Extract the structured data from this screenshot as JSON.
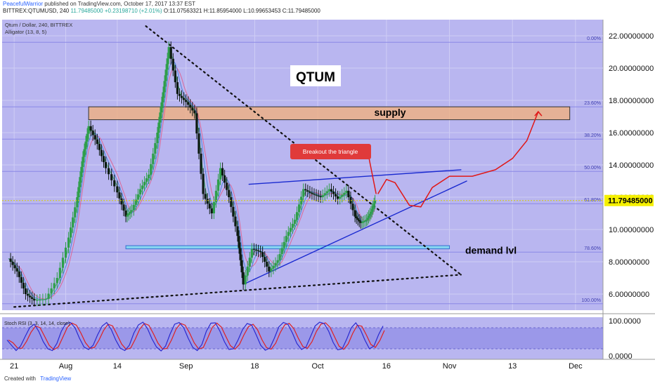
{
  "header": {
    "author": "PeacefulWarrior",
    "published": "published on TradingView.com, October 17, 2017 13:37 EST"
  },
  "ohlc_line": {
    "prefix": "BITTREX:QTUMUSD, 240",
    "close": "11.79485000",
    "change": "+0.23198710 (+2.01%)",
    "open": "O:11.07563321",
    "high": "H:11.85954000",
    "low": "L:10.99653453",
    "close_label": "C:11.79485000"
  },
  "symbol_label": "Qtum / Dollar, 240, BITTREX",
  "indicator_label": "Alligator (13, 8, 5)",
  "stoch_label": "Stoch RSI (3, 3, 14, 14, close)",
  "footer": {
    "created_with": "Created with",
    "brand": "TradingView"
  },
  "colors": {
    "background": "#b9b6f0",
    "grid": "#cfcdf5",
    "supply_zone": "#f0b080",
    "demand_zone": "#7fd6f0",
    "trendline_blue": "#1a2ad0",
    "projection_red": "#e01818",
    "fib_line": "#8a88e6",
    "price_badge": "#f5f000"
  },
  "chart_data": [
    {
      "type": "candlestick",
      "title": "",
      "y_scale": "linear",
      "ylim": [
        5.0,
        23.0
      ],
      "y_tick_labels": [
        "22.00000000",
        "20.00000000",
        "18.00000000",
        "16.00000000",
        "14.00000000",
        "12.00000000",
        "10.00000000",
        "8.00000000",
        "6.00000000"
      ],
      "y_ticks": [
        22,
        20,
        18,
        16,
        14,
        12,
        10,
        8,
        6
      ],
      "x_tick_labels": [
        "21",
        "Aug",
        "14",
        "Sep",
        "18",
        "Oct",
        "16",
        "Nov",
        "13",
        "Dec"
      ],
      "last_price": 11.79485,
      "last_price_label": "11.79485000",
      "price_path": [
        {
          "x": 0.0,
          "y": 8.2
        },
        {
          "x": 1.5,
          "y": 7.4
        },
        {
          "x": 3.0,
          "y": 6.0
        },
        {
          "x": 4.5,
          "y": 5.6
        },
        {
          "x": 6.5,
          "y": 5.7
        },
        {
          "x": 8.5,
          "y": 7.0
        },
        {
          "x": 10.5,
          "y": 9.5
        },
        {
          "x": 12.0,
          "y": 12.0
        },
        {
          "x": 13.0,
          "y": 14.5
        },
        {
          "x": 14.0,
          "y": 16.4
        },
        {
          "x": 15.5,
          "y": 15.3
        },
        {
          "x": 17.0,
          "y": 13.8
        },
        {
          "x": 19.0,
          "y": 12.3
        },
        {
          "x": 20.5,
          "y": 10.8
        },
        {
          "x": 21.5,
          "y": 11.2
        },
        {
          "x": 23.0,
          "y": 12.5
        },
        {
          "x": 24.5,
          "y": 13.4
        },
        {
          "x": 26.0,
          "y": 16.0
        },
        {
          "x": 27.0,
          "y": 18.5
        },
        {
          "x": 28.0,
          "y": 21.3
        },
        {
          "x": 29.5,
          "y": 18.4
        },
        {
          "x": 31.0,
          "y": 17.9
        },
        {
          "x": 32.5,
          "y": 17.2
        },
        {
          "x": 34.0,
          "y": 12.2
        },
        {
          "x": 35.5,
          "y": 11.0
        },
        {
          "x": 37.0,
          "y": 13.8
        },
        {
          "x": 38.5,
          "y": 12.0
        },
        {
          "x": 40.0,
          "y": 9.6
        },
        {
          "x": 41.0,
          "y": 6.6
        },
        {
          "x": 42.5,
          "y": 8.8
        },
        {
          "x": 44.0,
          "y": 8.6
        },
        {
          "x": 45.5,
          "y": 7.4
        },
        {
          "x": 47.0,
          "y": 8.1
        },
        {
          "x": 48.5,
          "y": 9.6
        },
        {
          "x": 50.0,
          "y": 10.6
        },
        {
          "x": 51.5,
          "y": 12.5
        },
        {
          "x": 53.0,
          "y": 12.2
        },
        {
          "x": 54.5,
          "y": 12.0
        },
        {
          "x": 56.0,
          "y": 12.5
        },
        {
          "x": 57.5,
          "y": 11.9
        },
        {
          "x": 59.0,
          "y": 12.4
        },
        {
          "x": 60.5,
          "y": 10.8
        },
        {
          "x": 61.5,
          "y": 10.4
        },
        {
          "x": 62.5,
          "y": 10.6
        },
        {
          "x": 63.3,
          "y": 11.1
        },
        {
          "x": 64.0,
          "y": 11.79
        }
      ],
      "fibonacci_levels": [
        {
          "label": "0.00%",
          "price": 21.6
        },
        {
          "label": "23.60%",
          "price": 17.6
        },
        {
          "label": "38.20%",
          "price": 15.6
        },
        {
          "label": "50.00%",
          "price": 13.6
        },
        {
          "label": "61.80%",
          "price": 11.6
        },
        {
          "label": "78.60%",
          "price": 8.6
        },
        {
          "label": "100.00%",
          "price": 5.4
        }
      ],
      "zones": [
        {
          "label": "supply",
          "x_start": 14.0,
          "x_end": 98.0,
          "price_low": 16.8,
          "price_high": 17.6
        },
        {
          "label": "demand lvl",
          "x_start": 20.5,
          "x_end": 77.0,
          "price_low": 8.8,
          "price_high": 9.0
        }
      ],
      "annotations": {
        "title_box": "QTUM",
        "callout": "Breakout the triangle"
      },
      "trendlines": [
        {
          "name": "descending",
          "style": "dotted",
          "from": {
            "x": 24.0,
            "y": 22.6
          },
          "to": {
            "x": 79.0,
            "y": 7.2
          }
        },
        {
          "name": "base",
          "style": "dotted",
          "from": {
            "x": 1.0,
            "y": 5.2
          },
          "to": {
            "x": 79.0,
            "y": 7.2
          }
        },
        {
          "name": "wedge-upper",
          "style": "solid",
          "from": {
            "x": 42.0,
            "y": 12.8
          },
          "to": {
            "x": 79.0,
            "y": 13.7
          }
        },
        {
          "name": "wedge-lower",
          "style": "solid",
          "from": {
            "x": 41.0,
            "y": 6.6
          },
          "to": {
            "x": 80.0,
            "y": 13.0
          }
        }
      ],
      "projection": [
        {
          "x": 64.5,
          "y": 12.2
        },
        {
          "x": 66.0,
          "y": 13.1
        },
        {
          "x": 67.5,
          "y": 12.9
        },
        {
          "x": 70.0,
          "y": 11.5
        },
        {
          "x": 72.0,
          "y": 11.4
        },
        {
          "x": 74.0,
          "y": 12.6
        },
        {
          "x": 77.0,
          "y": 13.3
        },
        {
          "x": 81.0,
          "y": 13.3
        },
        {
          "x": 85.0,
          "y": 13.7
        },
        {
          "x": 88.0,
          "y": 14.4
        },
        {
          "x": 90.5,
          "y": 15.5
        },
        {
          "x": 92.5,
          "y": 17.3
        }
      ]
    },
    {
      "type": "line",
      "title": "",
      "ylim": [
        -10,
        110
      ],
      "y_tick_labels": [
        "100.0000",
        "0.0000"
      ],
      "y_ticks": [
        100,
        0
      ],
      "band": [
        20,
        80
      ],
      "values": [
        45,
        30,
        15,
        28,
        55,
        80,
        90,
        70,
        40,
        20,
        15,
        35,
        70,
        92,
        95,
        80,
        50,
        25,
        18,
        30,
        60,
        85,
        95,
        75,
        45,
        22,
        15,
        30,
        65,
        88,
        96,
        78,
        48,
        25,
        14,
        28,
        62,
        90,
        95,
        80,
        50,
        24,
        15,
        32,
        70,
        93,
        94,
        70,
        40,
        18,
        20,
        45,
        75,
        92,
        88,
        60,
        30,
        16,
        22,
        50,
        82,
        95,
        90,
        65,
        35,
        18,
        25,
        55,
        85,
        96,
        92,
        70,
        38,
        17,
        20,
        48,
        80,
        94,
        75,
        45,
        20,
        28,
        60,
        85
      ]
    }
  ]
}
